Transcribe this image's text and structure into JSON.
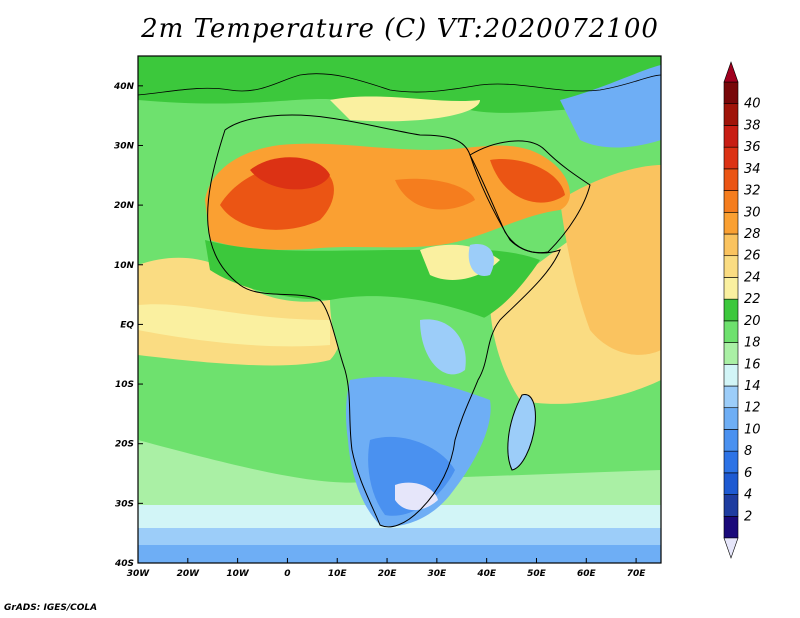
{
  "title": "2m Temperature (C) VT:2020072100",
  "credit": "GrADS: IGES/COLA",
  "map": {
    "projection": "lat-lon",
    "lon_range": [
      -30,
      75
    ],
    "lat_range": [
      -40,
      45
    ],
    "lon_ticks": [
      {
        "value": -30,
        "label": "30W"
      },
      {
        "value": -20,
        "label": "20W"
      },
      {
        "value": -10,
        "label": "10W"
      },
      {
        "value": 0,
        "label": "0"
      },
      {
        "value": 10,
        "label": "10E"
      },
      {
        "value": 20,
        "label": "20E"
      },
      {
        "value": 30,
        "label": "30E"
      },
      {
        "value": 40,
        "label": "40E"
      },
      {
        "value": 50,
        "label": "50E"
      },
      {
        "value": 60,
        "label": "60E"
      },
      {
        "value": 70,
        "label": "70E"
      }
    ],
    "lat_ticks": [
      {
        "value": 40,
        "label": "40N"
      },
      {
        "value": 30,
        "label": "30N"
      },
      {
        "value": 20,
        "label": "20N"
      },
      {
        "value": 10,
        "label": "10N"
      },
      {
        "value": 0,
        "label": "EQ"
      },
      {
        "value": -10,
        "label": "10S"
      },
      {
        "value": -20,
        "label": "20S"
      },
      {
        "value": -30,
        "label": "30S"
      },
      {
        "value": -40,
        "label": "40S"
      }
    ],
    "colorbar": {
      "levels": [
        2,
        4,
        6,
        8,
        10,
        12,
        14,
        16,
        18,
        20,
        22,
        24,
        26,
        28,
        30,
        32,
        34,
        36,
        38,
        40
      ],
      "colors": [
        "#1a0a7a",
        "#1e3ca0",
        "#1e5ad2",
        "#2d73e6",
        "#4a91f0",
        "#6eaef5",
        "#9ccdf9",
        "#d2f5f7",
        "#aaf0a5",
        "#6ee16e",
        "#3cc83c",
        "#faf0a0",
        "#fadc82",
        "#fac35f",
        "#faa032",
        "#f57d1e",
        "#eb5514",
        "#dc3214",
        "#c81e14",
        "#a0140a",
        "#78080a"
      ],
      "under_color": "#e6e6fa",
      "over_color": "#a0001e"
    }
  }
}
